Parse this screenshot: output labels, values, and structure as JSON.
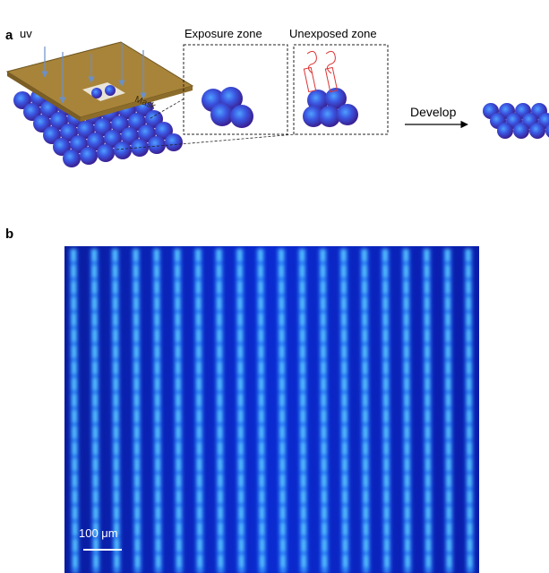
{
  "panel_a": {
    "label": "a",
    "uv_label": "uv",
    "mask_label": "Mask",
    "exposure_zone": "Exposure zone",
    "unexposed_zone": "Unexposed zone",
    "develop": "Develop"
  },
  "panel_b": {
    "label": "b",
    "scale_bar": "100 μm"
  }
}
